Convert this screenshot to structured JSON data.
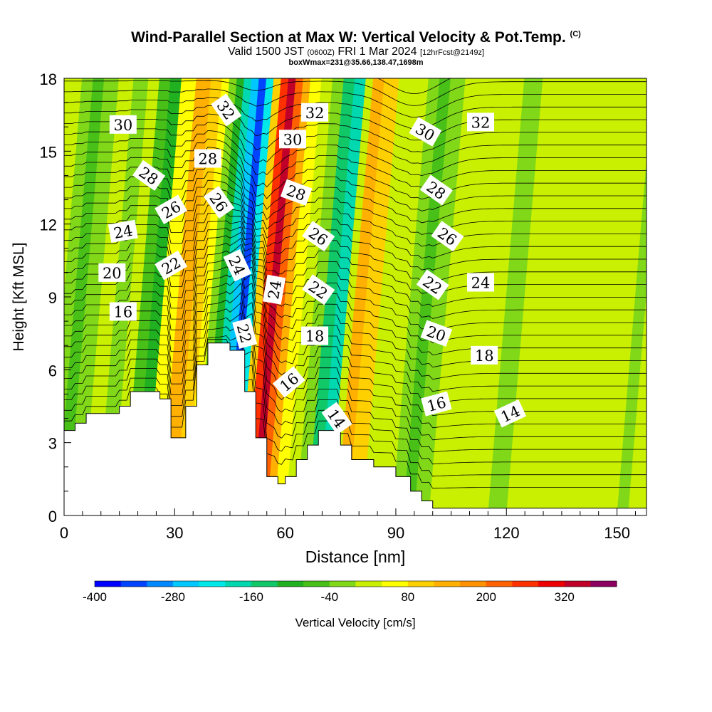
{
  "title": {
    "main": "Wind-Parallel Section at Max W: Vertical Velocity & Pot.Temp.",
    "copyright": "(C)",
    "valid_prefix": "Valid 1500 JST",
    "valid_utc": "(0600Z)",
    "valid_date": "FRI 1 Mar 2024",
    "forecast": "[12hrFcst@2149z]",
    "box_info": "boxWmax=231@35.66,138.47,1698m"
  },
  "chart_data": {
    "type": "heatmap",
    "xlabel": "Distance [nm]",
    "ylabel": "Height [Kft MSL]",
    "xlim": [
      0,
      158
    ],
    "ylim": [
      0,
      18
    ],
    "x_ticks": [
      0,
      30,
      60,
      90,
      120,
      150
    ],
    "y_ticks": [
      0,
      3,
      6,
      9,
      12,
      15,
      18
    ],
    "colorbar": {
      "label": "Vertical Velocity [cm/s]",
      "tick_labels": [
        "-400",
        "-280",
        "-160",
        "-40",
        "80",
        "200",
        "320"
      ],
      "levels": [
        -400,
        -360,
        -320,
        -280,
        -240,
        -200,
        -160,
        -120,
        -80,
        -40,
        0,
        40,
        80,
        120,
        160,
        200,
        240,
        280,
        320,
        360,
        400
      ],
      "colors": [
        "#0000ff",
        "#0044ff",
        "#0088ff",
        "#00c8ff",
        "#00e8e8",
        "#00d8b0",
        "#10c868",
        "#20b020",
        "#48c018",
        "#80d818",
        "#c8f000",
        "#ffff00",
        "#ffd000",
        "#ffb000",
        "#ff9000",
        "#ff6000",
        "#ff3000",
        "#ee0000",
        "#c00028",
        "#8c0060"
      ]
    },
    "velocity_columns": [
      {
        "x": 0,
        "w": -20
      },
      {
        "x": 3,
        "w": -60
      },
      {
        "x": 6,
        "w": -10
      },
      {
        "x": 10,
        "w": 10
      },
      {
        "x": 14,
        "w": -5
      },
      {
        "x": 18,
        "w": 15
      },
      {
        "x": 21,
        "w": -60
      },
      {
        "x": 24,
        "w": -100
      },
      {
        "x": 27,
        "w": 40
      },
      {
        "x": 31,
        "w": 120
      },
      {
        "x": 35,
        "w": 100
      },
      {
        "x": 38,
        "w": 50
      },
      {
        "x": 40,
        "w": -40
      },
      {
        "x": 42,
        "w": -110
      },
      {
        "x": 44,
        "w": -200
      },
      {
        "x": 46,
        "w": -280
      },
      {
        "x": 48,
        "w": -340
      },
      {
        "x": 50,
        "w": -240
      },
      {
        "x": 52,
        "w": 80
      },
      {
        "x": 54,
        "w": 260
      },
      {
        "x": 56,
        "w": 350
      },
      {
        "x": 58,
        "w": 230
      },
      {
        "x": 60,
        "w": 140
      },
      {
        "x": 62,
        "w": 60
      },
      {
        "x": 65,
        "w": 20
      },
      {
        "x": 68,
        "w": -30
      },
      {
        "x": 71,
        "w": -150
      },
      {
        "x": 74,
        "w": -170
      },
      {
        "x": 77,
        "w": 20
      },
      {
        "x": 79,
        "w": 120
      },
      {
        "x": 82,
        "w": 80
      },
      {
        "x": 86,
        "w": 20
      },
      {
        "x": 90,
        "w": 10
      },
      {
        "x": 94,
        "w": -40
      },
      {
        "x": 97,
        "w": -80
      },
      {
        "x": 100,
        "w": -30
      },
      {
        "x": 104,
        "w": 20
      },
      {
        "x": 110,
        "w": 10
      },
      {
        "x": 115,
        "w": 30
      },
      {
        "x": 120,
        "w": -10
      },
      {
        "x": 125,
        "w": 20
      },
      {
        "x": 130,
        "w": 30
      },
      {
        "x": 135,
        "w": 10
      },
      {
        "x": 140,
        "w": 20
      },
      {
        "x": 145,
        "w": 30
      },
      {
        "x": 150,
        "w": 20
      },
      {
        "x": 155,
        "w": -10
      },
      {
        "x": 158,
        "w": 10
      }
    ],
    "terrain_heights": [
      {
        "x": 0,
        "y": 3.5
      },
      {
        "x": 3,
        "y": 3.8
      },
      {
        "x": 6,
        "y": 4.2
      },
      {
        "x": 15,
        "y": 4.5
      },
      {
        "x": 18,
        "y": 5.1
      },
      {
        "x": 26,
        "y": 4.8
      },
      {
        "x": 29,
        "y": 3.2
      },
      {
        "x": 33,
        "y": 4.5
      },
      {
        "x": 36,
        "y": 6.2
      },
      {
        "x": 39,
        "y": 7.1
      },
      {
        "x": 42,
        "y": 7.1
      },
      {
        "x": 45,
        "y": 6.8
      },
      {
        "x": 48,
        "y": 6.8
      },
      {
        "x": 49,
        "y": 5.1
      },
      {
        "x": 52,
        "y": 3.2
      },
      {
        "x": 55,
        "y": 1.6
      },
      {
        "x": 58,
        "y": 1.3
      },
      {
        "x": 60,
        "y": 1.6
      },
      {
        "x": 63,
        "y": 2.3
      },
      {
        "x": 66,
        "y": 2.9
      },
      {
        "x": 69,
        "y": 3.5
      },
      {
        "x": 72,
        "y": 3.5
      },
      {
        "x": 75,
        "y": 2.9
      },
      {
        "x": 78,
        "y": 2.3
      },
      {
        "x": 84,
        "y": 2.0
      },
      {
        "x": 90,
        "y": 1.6
      },
      {
        "x": 94,
        "y": 1.0
      },
      {
        "x": 97,
        "y": 0.6
      },
      {
        "x": 100,
        "y": 0.3
      },
      {
        "x": 103,
        "y": 0.3
      },
      {
        "x": 158,
        "y": 0.3
      }
    ],
    "theta_contour_labels": [
      {
        "text": "30",
        "x": 16,
        "y": 16.1,
        "angle": 0
      },
      {
        "text": "28",
        "x": 23,
        "y": 14.0,
        "angle": 35
      },
      {
        "text": "28",
        "x": 39,
        "y": 14.7,
        "angle": 0
      },
      {
        "text": "32",
        "x": 44,
        "y": 16.7,
        "angle": 55
      },
      {
        "text": "26",
        "x": 29,
        "y": 12.6,
        "angle": -30
      },
      {
        "text": "26",
        "x": 42,
        "y": 12.9,
        "angle": 55
      },
      {
        "text": "24",
        "x": 16,
        "y": 11.7,
        "angle": -10
      },
      {
        "text": "24",
        "x": 47,
        "y": 10.3,
        "angle": 65
      },
      {
        "text": "24",
        "x": 57,
        "y": 9.3,
        "angle": -80
      },
      {
        "text": "22",
        "x": 29,
        "y": 10.3,
        "angle": -30
      },
      {
        "text": "22",
        "x": 49,
        "y": 7.5,
        "angle": 75
      },
      {
        "text": "22",
        "x": 69,
        "y": 9.3,
        "angle": 35
      },
      {
        "text": "20",
        "x": 13,
        "y": 10.0,
        "angle": 0
      },
      {
        "text": "16",
        "x": 16,
        "y": 8.4,
        "angle": 0
      },
      {
        "text": "32",
        "x": 68,
        "y": 16.6,
        "angle": 0
      },
      {
        "text": "30",
        "x": 62,
        "y": 15.5,
        "angle": 0
      },
      {
        "text": "28",
        "x": 63,
        "y": 13.3,
        "angle": 20
      },
      {
        "text": "26",
        "x": 69,
        "y": 11.5,
        "angle": 35
      },
      {
        "text": "18",
        "x": 68,
        "y": 7.4,
        "angle": 0
      },
      {
        "text": "16",
        "x": 61,
        "y": 5.5,
        "angle": -40
      },
      {
        "text": "14",
        "x": 74,
        "y": 4.0,
        "angle": 55
      },
      {
        "text": "30",
        "x": 98,
        "y": 15.8,
        "angle": 30
      },
      {
        "text": "32",
        "x": 113,
        "y": 16.2,
        "angle": 0
      },
      {
        "text": "28",
        "x": 101,
        "y": 13.4,
        "angle": 35
      },
      {
        "text": "26",
        "x": 104,
        "y": 11.5,
        "angle": 35
      },
      {
        "text": "24",
        "x": 113,
        "y": 9.6,
        "angle": 0
      },
      {
        "text": "22",
        "x": 100,
        "y": 9.5,
        "angle": 35
      },
      {
        "text": "20",
        "x": 101,
        "y": 7.5,
        "angle": 20
      },
      {
        "text": "18",
        "x": 114,
        "y": 6.6,
        "angle": 0
      },
      {
        "text": "16",
        "x": 101,
        "y": 4.6,
        "angle": -15
      },
      {
        "text": "14",
        "x": 121,
        "y": 4.2,
        "angle": -25
      }
    ]
  }
}
